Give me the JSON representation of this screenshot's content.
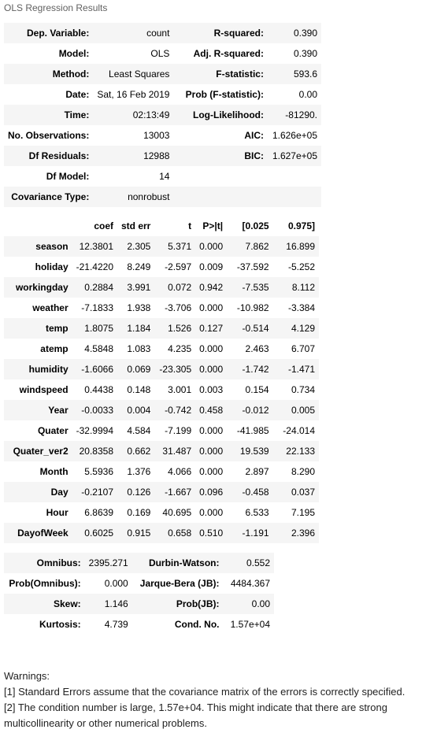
{
  "caption": "OLS Regression Results",
  "summary_rows": [
    [
      "Dep. Variable:",
      "count",
      "R-squared:",
      "0.390"
    ],
    [
      "Model:",
      "OLS",
      "Adj. R-squared:",
      "0.390"
    ],
    [
      "Method:",
      "Least Squares",
      "F-statistic:",
      "593.6"
    ],
    [
      "Date:",
      "Sat, 16 Feb 2019",
      "Prob (F-statistic):",
      "0.00"
    ],
    [
      "Time:",
      "02:13:49",
      "Log-Likelihood:",
      "-81290."
    ],
    [
      "No. Observations:",
      "13003",
      "AIC:",
      "1.626e+05"
    ],
    [
      "Df Residuals:",
      "12988",
      "BIC:",
      "1.627e+05"
    ],
    [
      "Df Model:",
      "14",
      "",
      ""
    ],
    [
      "Covariance Type:",
      "nonrobust",
      "",
      ""
    ]
  ],
  "coef_headers": [
    "",
    "coef",
    "std err",
    "t",
    "P>|t|",
    "[0.025",
    "0.975]"
  ],
  "coef_rows": [
    [
      "season",
      "12.3801",
      "2.305",
      "5.371",
      "0.000",
      "7.862",
      "16.899"
    ],
    [
      "holiday",
      "-21.4220",
      "8.249",
      "-2.597",
      "0.009",
      "-37.592",
      "-5.252"
    ],
    [
      "workingday",
      "0.2884",
      "3.991",
      "0.072",
      "0.942",
      "-7.535",
      "8.112"
    ],
    [
      "weather",
      "-7.1833",
      "1.938",
      "-3.706",
      "0.000",
      "-10.982",
      "-3.384"
    ],
    [
      "temp",
      "1.8075",
      "1.184",
      "1.526",
      "0.127",
      "-0.514",
      "4.129"
    ],
    [
      "atemp",
      "4.5848",
      "1.083",
      "4.235",
      "0.000",
      "2.463",
      "6.707"
    ],
    [
      "humidity",
      "-1.6066",
      "0.069",
      "-23.305",
      "0.000",
      "-1.742",
      "-1.471"
    ],
    [
      "windspeed",
      "0.4438",
      "0.148",
      "3.001",
      "0.003",
      "0.154",
      "0.734"
    ],
    [
      "Year",
      "-0.0033",
      "0.004",
      "-0.742",
      "0.458",
      "-0.012",
      "0.005"
    ],
    [
      "Quater",
      "-32.9994",
      "4.584",
      "-7.199",
      "0.000",
      "-41.985",
      "-24.014"
    ],
    [
      "Quater_ver2",
      "20.8358",
      "0.662",
      "31.487",
      "0.000",
      "19.539",
      "22.133"
    ],
    [
      "Month",
      "5.5936",
      "1.376",
      "4.066",
      "0.000",
      "2.897",
      "8.290"
    ],
    [
      "Day",
      "-0.2107",
      "0.126",
      "-1.667",
      "0.096",
      "-0.458",
      "0.037"
    ],
    [
      "Hour",
      "6.8639",
      "0.169",
      "40.695",
      "0.000",
      "6.533",
      "7.195"
    ],
    [
      "DayofWeek",
      "0.6025",
      "0.915",
      "0.658",
      "0.510",
      "-1.191",
      "2.396"
    ]
  ],
  "diag_rows": [
    [
      "Omnibus:",
      "2395.271",
      "Durbin-Watson:",
      "0.552"
    ],
    [
      "Prob(Omnibus):",
      "0.000",
      "Jarque-Bera (JB):",
      "4484.367"
    ],
    [
      "Skew:",
      "1.146",
      "Prob(JB):",
      "0.00"
    ],
    [
      "Kurtosis:",
      "4.739",
      "Cond. No.",
      "1.57e+04"
    ]
  ],
  "warnings": {
    "title": "Warnings:",
    "items": [
      "[1] Standard Errors assume that the covariance matrix of the errors is correctly specified.",
      "[2] The condition number is large, 1.57e+04. This might indicate that there are strong multicollinearity or other numerical problems."
    ]
  }
}
